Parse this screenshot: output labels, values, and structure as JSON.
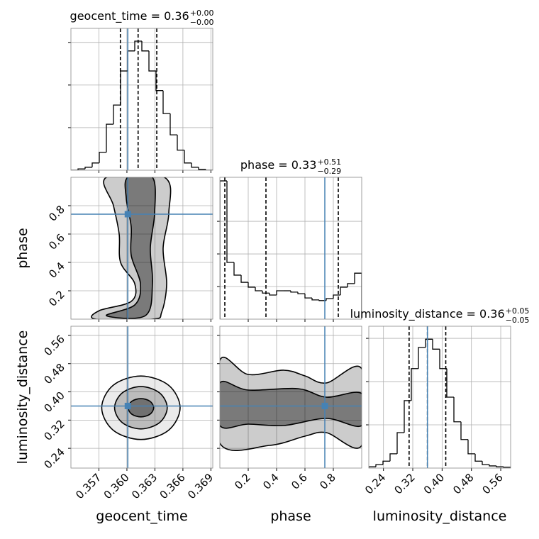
{
  "chart_data": [
    {
      "type": "histogram",
      "title": "geocent_time = 0.36",
      "title_upper": "+0.00",
      "title_lower": "−0.00",
      "bins": [
        0.354,
        0.35476,
        0.35552,
        0.35628,
        0.35704,
        0.3578,
        0.35856,
        0.35932,
        0.36008,
        0.36084,
        0.3616,
        0.36236,
        0.36312,
        0.36388,
        0.36464,
        0.3654,
        0.36616,
        0.36692,
        0.36768,
        0.36844,
        0.3692
      ],
      "values": [
        0,
        0.03,
        0.07,
        0.17,
        0.42,
        1.08,
        1.53,
        2.33,
        2.8,
        3.03,
        2.8,
        2.33,
        1.87,
        1.33,
        0.83,
        0.47,
        0.17,
        0.07,
        0.02,
        0
      ],
      "xlim": [
        0.354,
        0.3692
      ],
      "ylim": [
        0,
        3.33
      ],
      "xticks": [
        0.357,
        {
          "value": 0.36,
          "label": "0.360"
        },
        0.363,
        0.366,
        0.369
      ],
      "yticks": [
        1,
        2,
        3
      ],
      "show_xtick_labels": false,
      "show_ytick_labels": false,
      "quantiles": [
        0.3593,
        0.3612,
        0.3632
      ],
      "truth": 0.3601,
      "color": "#000000",
      "truth_color": "#4682b4",
      "grid": true
    },
    {
      "type": "contour",
      "xlim": [
        0.354,
        0.3692
      ],
      "ylim": [
        0,
        1
      ],
      "xticks": [
        0.357,
        {
          "value": 0.36,
          "label": "0.360"
        },
        0.363,
        0.366,
        0.369
      ],
      "yticks": [
        0.2,
        0.4,
        0.6,
        0.8
      ],
      "show_xtick_labels": false,
      "show_ytick_labels": true,
      "ylabel": "phase",
      "contours": [
        {
          "x": [
            0.3578,
            0.36403,
            0.36449,
            0.36388,
            0.36426,
            0.36373,
            0.36274,
            0.35666,
            0.35704,
            0.36046,
            0.36084,
            0.35932,
            0.35917,
            0.35856
          ],
          "y": [
            1.0,
            1.0,
            0.75,
            0.5,
            0.25,
            0.05,
            0.0,
            0.0,
            0.06,
            0.125,
            0.25,
            0.4,
            0.6,
            0.8
          ]
        },
        {
          "x": [
            0.36008,
            0.36274,
            0.36297,
            0.36251,
            0.36274,
            0.36198,
            0.3578,
            0.36084,
            0.36145,
            0.36046,
            0.36046,
            0.35993
          ],
          "y": [
            1.0,
            1.0,
            0.75,
            0.5,
            0.25,
            0.025,
            0.025,
            0.1,
            0.25,
            0.45,
            0.65,
            0.85
          ]
        }
      ],
      "truth_x": 0.3601,
      "truth_y": 0.74,
      "color": "#000000",
      "truth_color": "#4682b4",
      "grid": true
    },
    {
      "type": "histogram",
      "title": "phase = 0.33",
      "title_upper": "+0.51",
      "title_lower": "−0.29",
      "bins": [
        0,
        0.05,
        0.1,
        0.15,
        0.2,
        0.25,
        0.3,
        0.35,
        0.4,
        0.45,
        0.5,
        0.55,
        0.6,
        0.65,
        0.7,
        0.75,
        0.8,
        0.85,
        0.9,
        0.95,
        1.0
      ],
      "values": [
        4.24,
        1.74,
        1.35,
        1.13,
        0.98,
        0.87,
        0.8,
        0.74,
        0.87,
        0.87,
        0.83,
        0.78,
        0.65,
        0.59,
        0.57,
        0.63,
        0.74,
        0.98,
        1.09,
        1.41
      ],
      "xlim": [
        0,
        1
      ],
      "ylim": [
        0,
        4.35
      ],
      "xticks": [
        0.2,
        0.4,
        0.6,
        0.8
      ],
      "yticks": [
        1,
        2,
        3
      ],
      "show_xtick_labels": false,
      "show_ytick_labels": false,
      "quantiles": [
        0.035,
        0.325,
        0.835
      ],
      "truth": 0.74,
      "color": "#000000",
      "truth_color": "#4682b4",
      "grid": true
    },
    {
      "type": "contour",
      "xlim": [
        0.354,
        0.3692
      ],
      "ylim": [
        0.184,
        0.586
      ],
      "xticks": [
        0.357,
        {
          "value": 0.36,
          "label": "0.360"
        },
        0.363,
        0.366,
        0.369
      ],
      "yticks": [
        0.24,
        0.32,
        {
          "value": 0.4,
          "label": "0.40"
        },
        0.48,
        0.56
      ],
      "show_xtick_labels": true,
      "show_ytick_labels": true,
      "xlabel": "geocent_time",
      "ylabel": "luminosity_distance",
      "contours": [
        {
          "x": [
            0.3657,
            0.36447,
            0.3615,
            0.35853,
            0.3573,
            0.35853,
            0.3615,
            0.36447
          ],
          "y": [
            0.355,
            0.4186,
            0.445,
            0.4186,
            0.355,
            0.2914,
            0.265,
            0.2914
          ]
        },
        {
          "x": [
            0.36432,
            0.36349,
            0.3615,
            0.35951,
            0.35868,
            0.35951,
            0.3615,
            0.36349
          ],
          "y": [
            0.355,
            0.3974,
            0.415,
            0.3974,
            0.355,
            0.3126,
            0.295,
            0.3126
          ]
        },
        {
          "x": [
            0.36287,
            0.36247,
            0.3615,
            0.36053,
            0.36013,
            0.36053,
            0.3615,
            0.36247
          ],
          "y": [
            0.355,
            0.3734,
            0.381,
            0.3734,
            0.355,
            0.3366,
            0.329,
            0.3366
          ]
        }
      ],
      "truth_x": 0.3601,
      "truth_y": 0.36,
      "color": "#000000",
      "truth_color": "#4682b4",
      "grid": true
    },
    {
      "type": "contour",
      "xlim": [
        0,
        1
      ],
      "ylim": [
        0.184,
        0.586
      ],
      "xticks": [
        0.2,
        0.4,
        0.6,
        0.8
      ],
      "yticks": [
        0.24,
        0.32,
        {
          "value": 0.4,
          "label": "0.40"
        },
        0.48,
        0.56
      ],
      "show_xtick_labels": true,
      "show_ytick_labels": false,
      "xlabel": "phase",
      "contours": [
        {
          "x": [
            0,
            0.2,
            0.45,
            0.6,
            0.75,
            1.0,
            1.0,
            0.75,
            0.6,
            0.35,
            0
          ],
          "y": [
            0.4895,
            0.4493,
            0.4614,
            0.4453,
            0.4252,
            0.4654,
            0.2483,
            0.2845,
            0.2745,
            0.2483,
            0.2543
          ]
        },
        {
          "x": [
            0,
            0.2,
            0.55,
            0.75,
            1.0,
            1.0,
            0.75,
            0.45,
            0.2,
            0
          ],
          "y": [
            0.4252,
            0.4051,
            0.4091,
            0.385,
            0.3951,
            0.3046,
            0.3247,
            0.3046,
            0.3086,
            0.3046
          ]
        }
      ],
      "truth_x": 0.74,
      "truth_y": 0.36,
      "color": "#000000",
      "truth_color": "#4682b4",
      "grid": true
    },
    {
      "type": "histogram",
      "title": "luminosity_distance = 0.36",
      "title_upper": "+0.05",
      "title_lower": "−0.05",
      "bins": [
        0.2,
        0.21935,
        0.2387,
        0.25805,
        0.2774,
        0.29675,
        0.3161,
        0.33545,
        0.3548,
        0.37415,
        0.3935,
        0.41285,
        0.4322,
        0.45155,
        0.4709,
        0.49025,
        0.5096,
        0.52895,
        0.5483,
        0.56765,
        0.587
      ],
      "values": [
        0.03,
        0.08,
        0.16,
        0.33,
        0.82,
        1.56,
        2.3,
        2.79,
        2.98,
        2.75,
        2.3,
        1.64,
        1.07,
        0.66,
        0.33,
        0.16,
        0.08,
        0.05,
        0.03,
        0.02
      ],
      "xlim": [
        0.2,
        0.587
      ],
      "ylim": [
        0,
        3.28
      ],
      "xticks": [
        0.24,
        0.32,
        {
          "value": 0.4,
          "label": "0.40"
        },
        0.48,
        0.56
      ],
      "yticks": [
        1,
        2,
        3
      ],
      "show_xtick_labels": true,
      "show_ytick_labels": false,
      "xlabel": "luminosity_distance",
      "quantiles": [
        0.31,
        0.36,
        0.41
      ],
      "truth": 0.36,
      "color": "#000000",
      "truth_color": "#4682b4",
      "grid": true
    }
  ]
}
